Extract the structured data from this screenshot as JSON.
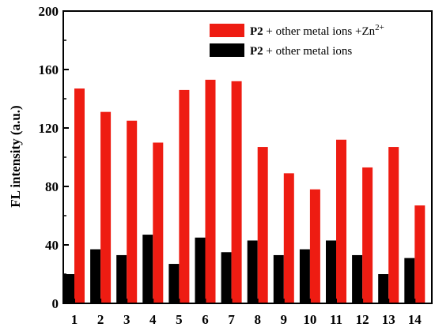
{
  "chart_data": {
    "type": "bar",
    "categories": [
      "1",
      "2",
      "3",
      "4",
      "5",
      "6",
      "7",
      "8",
      "9",
      "10",
      "11",
      "12",
      "13",
      "14"
    ],
    "series": [
      {
        "name_parts": {
          "bold": "P2",
          "rest": " + other metal ions +Zn",
          "sup": "2+"
        },
        "color": "#ee1c12",
        "values": [
          147,
          131,
          125,
          110,
          146,
          153,
          152,
          107,
          89,
          78,
          112,
          93,
          107,
          67
        ]
      },
      {
        "name_parts": {
          "bold": "P2",
          "rest": " + other metal ions",
          "sup": ""
        },
        "color": "#000000",
        "values": [
          20,
          37,
          33,
          47,
          27,
          45,
          35,
          43,
          33,
          37,
          43,
          33,
          20,
          31
        ]
      }
    ],
    "ylabel": "FL intensity (a.u.)",
    "xlabel": "",
    "ylim": [
      0,
      200
    ],
    "yticks": [
      "0",
      "40",
      "80",
      "120",
      "160",
      "200"
    ],
    "legend_position": "top-right",
    "grid": false
  }
}
